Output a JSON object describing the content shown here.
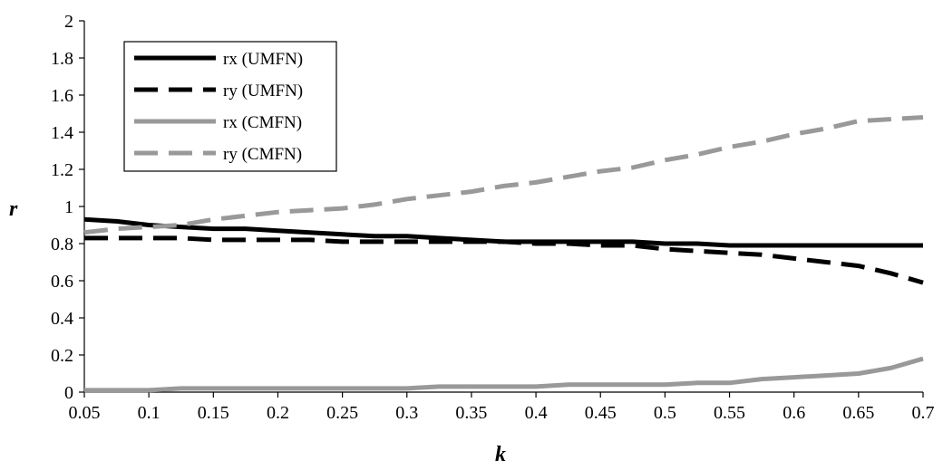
{
  "chart_data": {
    "type": "line",
    "title": "",
    "xlabel": "k",
    "ylabel": "r",
    "xlim": [
      0.05,
      0.7
    ],
    "ylim": [
      0,
      2
    ],
    "x_ticks": [
      "0.05",
      "0.1",
      "0.15",
      "0.2",
      "0.25",
      "0.3",
      "0.35",
      "0.4",
      "0.45",
      "0.5",
      "0.55",
      "0.6",
      "0.65",
      "0.7"
    ],
    "y_ticks": [
      "0",
      "0.2",
      "0.4",
      "0.6",
      "0.8",
      "1",
      "1.2",
      "1.4",
      "1.6",
      "1.8",
      "2"
    ],
    "grid": false,
    "legend_position": "top-left",
    "x": [
      0.05,
      0.075,
      0.1,
      0.125,
      0.15,
      0.175,
      0.2,
      0.225,
      0.25,
      0.275,
      0.3,
      0.325,
      0.35,
      0.375,
      0.4,
      0.425,
      0.45,
      0.475,
      0.5,
      0.525,
      0.55,
      0.575,
      0.6,
      0.625,
      0.65,
      0.675,
      0.7
    ],
    "series": [
      {
        "name": "rx (UMFN)",
        "color": "#000000",
        "dash": "solid",
        "values": [
          0.93,
          0.92,
          0.9,
          0.89,
          0.88,
          0.88,
          0.87,
          0.86,
          0.85,
          0.84,
          0.84,
          0.83,
          0.82,
          0.81,
          0.81,
          0.81,
          0.81,
          0.81,
          0.8,
          0.8,
          0.79,
          0.79,
          0.79,
          0.79,
          0.79,
          0.79,
          0.79
        ]
      },
      {
        "name": "ry (UMFN)",
        "color": "#000000",
        "dash": "dashed",
        "values": [
          0.83,
          0.83,
          0.83,
          0.83,
          0.82,
          0.82,
          0.82,
          0.82,
          0.81,
          0.81,
          0.81,
          0.81,
          0.81,
          0.81,
          0.8,
          0.8,
          0.79,
          0.79,
          0.77,
          0.76,
          0.75,
          0.74,
          0.72,
          0.7,
          0.68,
          0.64,
          0.59
        ]
      },
      {
        "name": "rx (CMFN)",
        "color": "#999999",
        "dash": "solid",
        "values": [
          0.01,
          0.01,
          0.01,
          0.02,
          0.02,
          0.02,
          0.02,
          0.02,
          0.02,
          0.02,
          0.02,
          0.03,
          0.03,
          0.03,
          0.03,
          0.04,
          0.04,
          0.04,
          0.04,
          0.05,
          0.05,
          0.07,
          0.08,
          0.09,
          0.1,
          0.13,
          0.18
        ]
      },
      {
        "name": "ry (CMFN)",
        "color": "#999999",
        "dash": "dashed",
        "values": [
          0.86,
          0.88,
          0.89,
          0.9,
          0.93,
          0.95,
          0.97,
          0.98,
          0.99,
          1.01,
          1.04,
          1.06,
          1.08,
          1.11,
          1.13,
          1.16,
          1.19,
          1.21,
          1.25,
          1.28,
          1.32,
          1.35,
          1.39,
          1.42,
          1.46,
          1.47,
          1.48
        ]
      }
    ]
  }
}
